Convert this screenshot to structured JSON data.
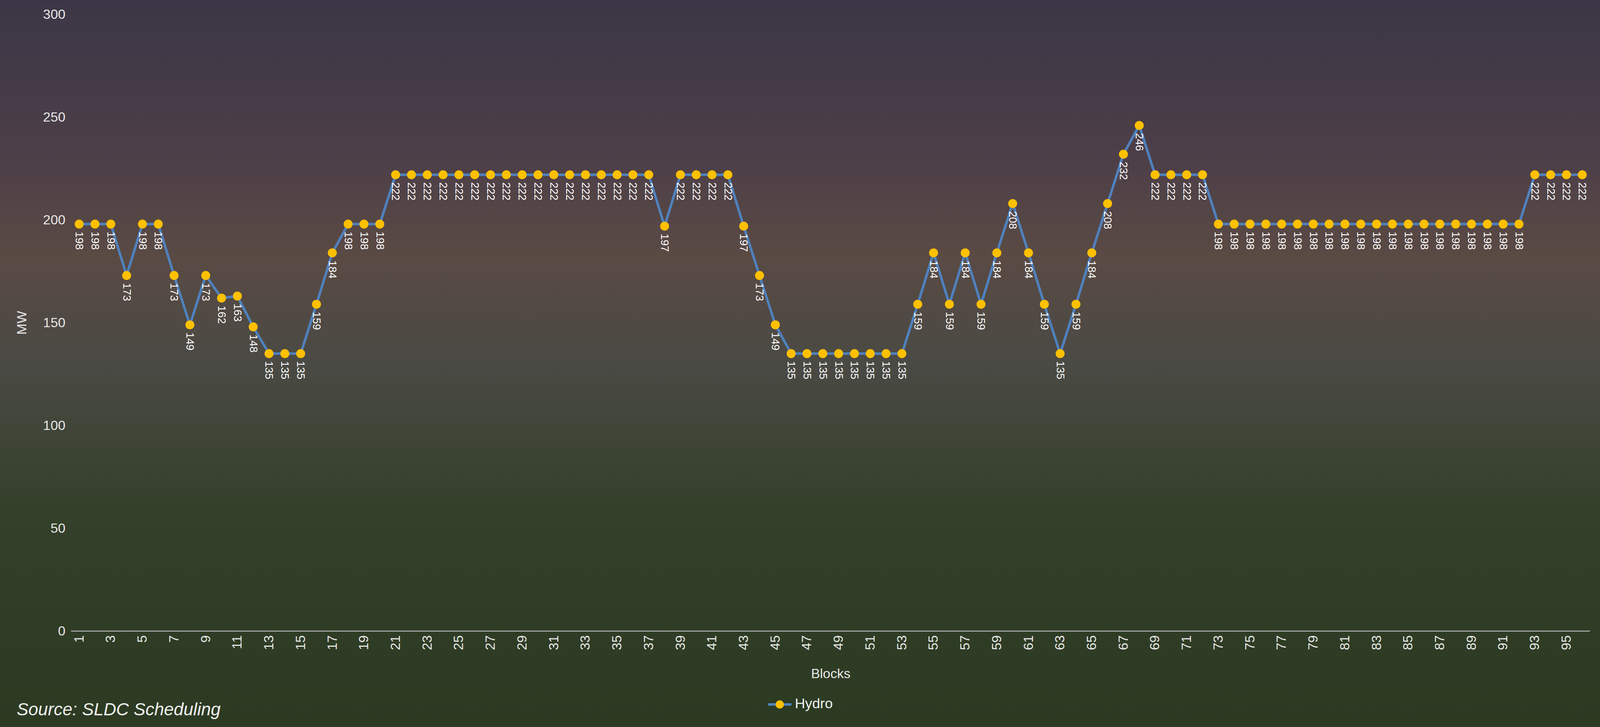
{
  "chart_data": {
    "type": "line",
    "x_label": "Blocks",
    "y_label": "MW",
    "source": "Source: SLDC Scheduling",
    "categories": [
      1,
      null,
      3,
      null,
      5,
      null,
      7,
      null,
      9,
      null,
      11,
      null,
      13,
      null,
      15,
      null,
      17,
      null,
      19,
      null,
      21,
      null,
      23,
      null,
      25,
      null,
      27,
      null,
      29,
      null,
      31,
      null,
      33,
      null,
      35,
      null,
      37,
      null,
      39,
      null,
      41,
      null,
      43,
      null,
      45,
      null,
      47,
      null,
      49,
      null,
      51,
      null,
      53,
      null,
      55,
      null,
      57,
      null,
      59,
      null,
      61,
      null,
      63,
      null,
      65,
      null,
      67,
      null,
      69,
      null,
      71,
      null,
      73,
      null,
      75,
      null,
      77,
      null,
      79,
      null,
      81,
      null,
      83,
      null,
      85,
      null,
      87,
      null,
      89,
      null,
      91,
      null,
      93,
      null,
      95,
      null
    ],
    "series": [
      {
        "name": "Hydro",
        "color": "#4f81bd",
        "marker": "circle",
        "values": [
          198,
          198,
          198,
          173,
          198,
          198,
          173,
          149,
          173,
          162,
          163,
          148,
          135,
          135,
          135,
          159,
          184,
          198,
          198,
          198,
          222,
          222,
          222,
          222,
          222,
          222,
          222,
          222,
          222,
          222,
          222,
          222,
          222,
          222,
          222,
          222,
          222,
          197,
          222,
          222,
          222,
          222,
          197,
          173,
          149,
          135,
          135,
          135,
          135,
          135,
          135,
          135,
          135,
          159,
          184,
          159,
          184,
          159,
          184,
          208,
          184,
          159,
          135,
          159,
          184,
          208,
          232,
          246,
          222,
          222,
          222,
          222,
          198,
          198,
          198,
          198,
          198,
          198,
          198,
          198,
          198,
          198,
          198,
          198,
          198,
          198,
          198,
          198,
          198,
          198,
          198,
          198,
          222,
          222,
          222,
          222
        ]
      }
    ],
    "ylim": [
      0,
      300
    ],
    "yticks": [
      0,
      50,
      100,
      150,
      200,
      250,
      300
    ],
    "grid": false,
    "data_labels": true,
    "legend": "bottom"
  }
}
